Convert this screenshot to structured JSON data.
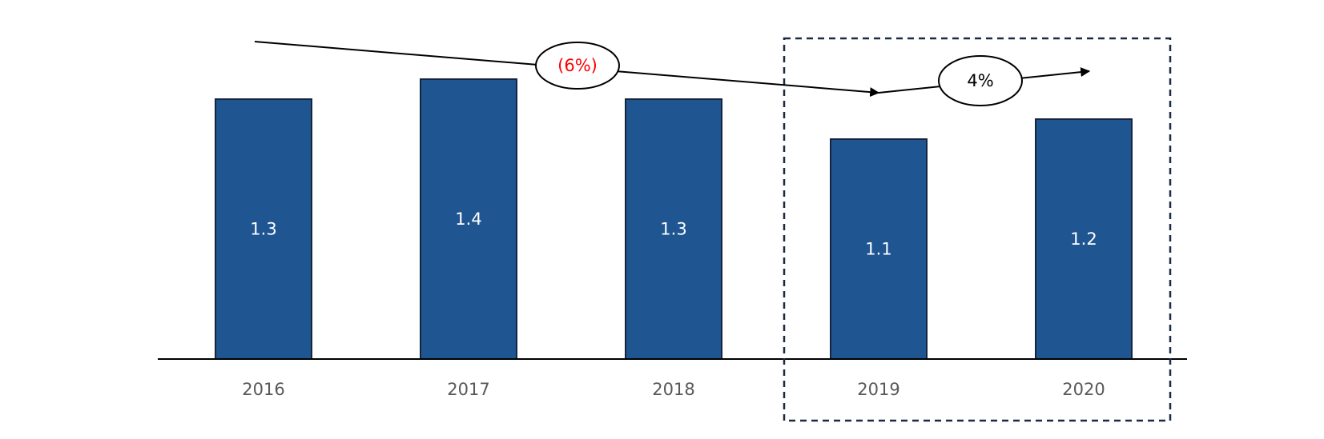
{
  "chart_data": {
    "type": "bar",
    "categories": [
      "2016",
      "2017",
      "2018",
      "2019",
      "2020"
    ],
    "values": [
      1.3,
      1.4,
      1.3,
      1.1,
      1.2
    ],
    "value_labels": [
      "1.3",
      "1.4",
      "1.3",
      "1.1",
      "1.2"
    ],
    "title": "",
    "xlabel": "",
    "ylabel": "",
    "grid": false,
    "legend": "none",
    "highlight": {
      "categories": [
        "2019",
        "2020"
      ],
      "style": "dashed box"
    },
    "annotations": [
      {
        "text": "(6%)",
        "from": "2016",
        "to": "2019",
        "color": "#ff0000"
      },
      {
        "text": "4%",
        "from": "2019",
        "to": "2020",
        "color": "#000000"
      }
    ]
  },
  "colors": {
    "bar": "#1f5591",
    "bar_border": "#14253d",
    "axis": "#000000",
    "tick_text": "#595959",
    "bar_text": "#ffffff",
    "highlight_box": "#1b2a44",
    "negative_growth": "#ff0000",
    "positive_growth": "#000000"
  }
}
